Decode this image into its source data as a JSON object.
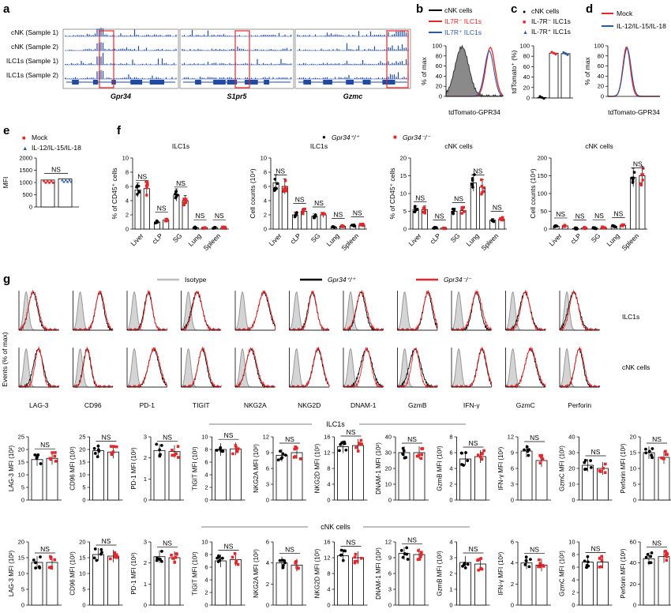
{
  "panel_letters": [
    "a",
    "b",
    "c",
    "d",
    "e",
    "f",
    "g"
  ],
  "colors": {
    "mock": "#e8262a",
    "treated": "#2c5aa0",
    "cnk": "#000000",
    "il7rneg": "#e8262a",
    "il7rpos": "#2c5aa0",
    "wt": "#000000",
    "ko": "#e8262a",
    "isotype": "#bdbdbd",
    "track": "#1f4aa8",
    "highlight": "#e8262a"
  },
  "panel_a": {
    "track_labels": [
      "cNK (Sample 1)",
      "cNK (Sample 2)",
      "ILC1s (Sample 1)",
      "ILC1s (Sample 2)"
    ],
    "genes": [
      "Gpr34",
      "S1pr5",
      "Gzmc"
    ]
  },
  "panel_b": {
    "legend": [
      "cNK cells",
      "IL7R⁻ ILC1s",
      "IL7R⁺ ILC1s"
    ],
    "ylabel": "% of max",
    "xlabel": "tdTomato-GPR34",
    "yticks": [
      "0",
      "20",
      "40",
      "60",
      "80",
      "100"
    ]
  },
  "panel_c": {
    "legend": [
      "cNK cells",
      "IL-7R⁻ ILC1s",
      "IL-7R⁺ ILC1s"
    ],
    "ylabel": "tdTomato⁺ (%)",
    "yticks": [
      "0",
      "20",
      "40",
      "60",
      "80",
      "100"
    ]
  },
  "panel_d": {
    "legend": [
      "Mock",
      "IL-12/IL-15/IL-18"
    ],
    "ylabel": "% of max",
    "xlabel": "tdTomato-GPR34",
    "yticks": [
      "0",
      "20",
      "40",
      "60",
      "80",
      "100"
    ]
  },
  "panel_e": {
    "legend": [
      "Mock",
      "IL-12/IL-15/IL-18"
    ],
    "ylabel": "MFI",
    "yticks": [
      "0",
      "500",
      "1000",
      "1500",
      "2000"
    ],
    "ns": "NS"
  },
  "panel_f": {
    "legend": [
      "Gpr34⁺/⁺",
      "Gpr34⁻/⁻"
    ]
  },
  "panel_g": {
    "legend": [
      "Isotype",
      "Gpr34⁺/⁺",
      "Gpr34⁻/⁻"
    ],
    "row_labels": [
      "ILC1s",
      "cNK cells"
    ],
    "ylabel": "Events (% of max)",
    "markers": [
      "LAG-3",
      "CD96",
      "PD-1",
      "TIGIT",
      "NKG2A",
      "NKG2D",
      "DNAM-1",
      "GzmB",
      "IFN-γ",
      "GzmC",
      "Perforin"
    ],
    "section_ilc1": "ILC1s",
    "section_cnk": "cNK cells"
  },
  "chart_data": [
    {
      "type": "bar",
      "panel": "c",
      "categories": [
        "cNK cells",
        "IL-7R⁻ ILC1s",
        "IL-7R⁺ ILC1s"
      ],
      "values": [
        1,
        86,
        85
      ],
      "ylim": [
        0,
        100
      ],
      "ylabel": "tdTomato⁺ (%)"
    },
    {
      "type": "bar",
      "panel": "e",
      "categories": [
        "Mock",
        "IL-12/IL-15/IL-18"
      ],
      "values": [
        1100,
        1150
      ],
      "ylim": [
        0,
        2000
      ],
      "ylabel": "MFI",
      "annotation": "NS"
    },
    {
      "type": "bar",
      "panel": "f1",
      "title": "ILC1s",
      "categories": [
        "Liver",
        "cLP",
        "SG",
        "Lung",
        "Spleen"
      ],
      "ylabel": "% of CD45⁺ cells",
      "ylim": [
        0,
        10
      ],
      "yticks": [
        "0",
        "2",
        "4",
        "6",
        "8",
        "10"
      ],
      "series": [
        {
          "name": "Gpr34⁺/⁺",
          "values": [
            5.5,
            1.0,
            4.8,
            0.2,
            0.2
          ]
        },
        {
          "name": "Gpr34⁻/⁻",
          "values": [
            5.7,
            1.3,
            4.0,
            0.2,
            0.2
          ]
        }
      ],
      "annotations": [
        "NS",
        "NS",
        "NS",
        "NS",
        "NS"
      ]
    },
    {
      "type": "bar",
      "panel": "f2",
      "title": "ILC1s",
      "categories": [
        "Liver",
        "cLP",
        "SG",
        "Lung",
        "Spleen"
      ],
      "ylabel": "Cell counts (10⁴)",
      "ylim": [
        0,
        10
      ],
      "yticks": [
        "0",
        "2",
        "4",
        "6",
        "8",
        "10"
      ],
      "series": [
        {
          "name": "Gpr34⁺/⁺",
          "values": [
            6.5,
            2.0,
            1.8,
            0.3,
            0.5
          ]
        },
        {
          "name": "Gpr34⁻/⁻",
          "values": [
            6.0,
            2.5,
            2.0,
            0.4,
            0.6
          ]
        }
      ],
      "annotations": [
        "NS",
        "NS",
        "NS",
        "NS",
        "NS"
      ]
    },
    {
      "type": "bar",
      "panel": "f3",
      "title": "cNK cells",
      "categories": [
        "Liver",
        "cLP",
        "SG",
        "Lung",
        "Spleen"
      ],
      "ylabel": "% of CD45⁺ cells",
      "ylim": [
        0,
        20
      ],
      "yticks": [
        "0",
        "5",
        "10",
        "15",
        "20"
      ],
      "series": [
        {
          "name": "Gpr34⁺/⁺",
          "values": [
            5.5,
            0.3,
            5.0,
            13.0,
            2.5
          ]
        },
        {
          "name": "Gpr34⁻/⁻",
          "values": [
            5.5,
            0.3,
            5.2,
            11.8,
            2.8
          ]
        }
      ],
      "annotations": [
        "NS",
        "NS",
        "NS",
        "NS",
        "NS"
      ]
    },
    {
      "type": "bar",
      "panel": "f4",
      "title": "cNK cells",
      "categories": [
        "Liver",
        "cLP",
        "SG",
        "Lung",
        "Spleen"
      ],
      "ylabel": "Cell counts (10⁴)",
      "ylim": [
        0,
        200
      ],
      "yticks": [
        "0",
        "50",
        "100",
        "150",
        "200"
      ],
      "series": [
        {
          "name": "Gpr34⁺/⁺",
          "values": [
            8,
            2,
            3,
            8,
            145
          ]
        },
        {
          "name": "Gpr34⁻/⁻",
          "values": [
            9,
            3,
            4,
            10,
            150
          ]
        }
      ],
      "annotations": [
        "NS",
        "NS",
        "NS",
        "NS",
        "NS"
      ]
    },
    {
      "type": "bar",
      "panel": "g-ilc1",
      "categories": [
        "Gpr34⁺/⁺",
        "Gpr34⁻/⁻"
      ],
      "plots": [
        {
          "ylabel": "LAG-3 MFI (10²)",
          "ylim": [
            0,
            25
          ],
          "yticks": [
            "0",
            "5",
            "10",
            "15",
            "20",
            "25"
          ],
          "values": [
            16,
            16.5
          ],
          "annotation": "NS"
        },
        {
          "ylabel": "CD96 MFI (10²)",
          "ylim": [
            0,
            25
          ],
          "yticks": [
            "0",
            "5",
            "10",
            "15",
            "20",
            "25"
          ],
          "values": [
            19.5,
            19
          ],
          "annotation": "NS"
        },
        {
          "ylabel": "PD-1 MFI (10²)",
          "ylim": [
            0,
            3
          ],
          "yticks": [
            "0",
            "1",
            "2",
            "3"
          ],
          "values": [
            2.35,
            2.3
          ],
          "annotation": "NS"
        },
        {
          "ylabel": "TIGIT MFI (10²)",
          "ylim": [
            0,
            10
          ],
          "yticks": [
            "0",
            "2",
            "4",
            "6",
            "8",
            "10"
          ],
          "values": [
            8.0,
            8.1
          ],
          "annotation": "NS"
        },
        {
          "ylabel": "NKG2A MFI (10²)",
          "ylim": [
            0,
            12
          ],
          "yticks": [
            "0",
            "3",
            "6",
            "9",
            "12"
          ],
          "values": [
            8.5,
            9.0
          ],
          "annotation": "NS"
        },
        {
          "ylabel": "NKG2D MFI (10²)",
          "ylim": [
            0,
            16
          ],
          "yticks": [
            "0",
            "4",
            "8",
            "12",
            "16"
          ],
          "values": [
            13.5,
            13.8
          ],
          "annotation": "NS"
        },
        {
          "ylabel": "DNAM-1 MFI (10²)",
          "ylim": [
            0,
            40
          ],
          "yticks": [
            "0",
            "10",
            "20",
            "30",
            "40"
          ],
          "values": [
            30,
            30
          ],
          "annotation": "NS"
        },
        {
          "ylabel": "GzmB MFI (10²)",
          "ylim": [
            0,
            8
          ],
          "yticks": [
            "0",
            "2",
            "4",
            "6",
            "8"
          ],
          "values": [
            5.2,
            5.5
          ],
          "annotation": "NS"
        },
        {
          "ylabel": "IFN-γ MFI (10²)",
          "ylim": [
            0,
            12
          ],
          "yticks": [
            "0",
            "3",
            "6",
            "9",
            "12"
          ],
          "values": [
            9.3,
            7.5
          ],
          "annotation": "NS"
        },
        {
          "ylabel": "GzmC MFI (10²)",
          "ylim": [
            0,
            40
          ],
          "yticks": [
            "0",
            "10",
            "20",
            "30",
            "40"
          ],
          "values": [
            22,
            20
          ],
          "annotation": "NS"
        },
        {
          "ylabel": "Perforin MFI (10²)",
          "ylim": [
            0,
            20
          ],
          "yticks": [
            "0",
            "5",
            "10",
            "15",
            "20"
          ],
          "values": [
            15,
            13.5
          ],
          "annotation": "NS"
        }
      ]
    },
    {
      "type": "bar",
      "panel": "g-cnk",
      "categories": [
        "Gpr34⁺/⁺",
        "Gpr34⁻/⁻"
      ],
      "plots": [
        {
          "ylabel": "LAG-3 MFI (10²)",
          "ylim": [
            0,
            20
          ],
          "yticks": [
            "0",
            "5",
            "10",
            "15",
            "20"
          ],
          "values": [
            13.5,
            13.5
          ],
          "annotation": "NS"
        },
        {
          "ylabel": "CD96 MFI (10²)",
          "ylim": [
            0,
            20
          ],
          "yticks": [
            "0",
            "5",
            "10",
            "15",
            "20"
          ],
          "values": [
            16,
            15.5
          ],
          "annotation": "NS"
        },
        {
          "ylabel": "PD-1 MFI (10²)",
          "ylim": [
            0,
            3
          ],
          "yticks": [
            "0",
            "1",
            "2",
            "3"
          ],
          "values": [
            2.3,
            2.25
          ],
          "annotation": "NS"
        },
        {
          "ylabel": "TIGIT MFI (10²)",
          "ylim": [
            0,
            10
          ],
          "yticks": [
            "0",
            "2",
            "4",
            "6",
            "8",
            "10"
          ],
          "values": [
            7.0,
            7.2
          ],
          "annotation": "NS"
        },
        {
          "ylabel": "NKG2A MFI (10²)",
          "ylim": [
            0,
            6
          ],
          "yticks": [
            "0",
            "2",
            "4",
            "6"
          ],
          "values": [
            4.0,
            3.8
          ],
          "annotation": "NS"
        },
        {
          "ylabel": "NKG2D MFI (10²)",
          "ylim": [
            0,
            16
          ],
          "yticks": [
            "0",
            "4",
            "8",
            "12",
            "16"
          ],
          "values": [
            12.5,
            12
          ],
          "annotation": "NS"
        },
        {
          "ylabel": "DNAM-1 MFI (10²)",
          "ylim": [
            0,
            12
          ],
          "yticks": [
            "0",
            "3",
            "6",
            "9",
            "12"
          ],
          "values": [
            9.8,
            9.6
          ],
          "annotation": "NS"
        },
        {
          "ylabel": "GzmB MFI (10²)",
          "ylim": [
            0,
            4
          ],
          "yticks": [
            "0",
            "1",
            "2",
            "3",
            "4"
          ],
          "values": [
            2.7,
            2.6
          ],
          "annotation": "NS"
        },
        {
          "ylabel": "IFN-γ MFI (10²)",
          "ylim": [
            0,
            6
          ],
          "yticks": [
            "0",
            "2",
            "4",
            "6"
          ],
          "values": [
            4.0,
            3.8
          ],
          "annotation": "NS"
        },
        {
          "ylabel": "GzmC MFI (10²)",
          "ylim": [
            0,
            10
          ],
          "yticks": [
            "0",
            "2",
            "4",
            "6",
            "8",
            "10"
          ],
          "values": [
            6.8,
            6.8
          ],
          "annotation": "NS"
        },
        {
          "ylabel": "Perforin MFI (10²)",
          "ylim": [
            0,
            60
          ],
          "yticks": [
            "0",
            "20",
            "40",
            "60"
          ],
          "values": [
            44,
            46
          ],
          "annotation": "NS"
        }
      ]
    }
  ]
}
